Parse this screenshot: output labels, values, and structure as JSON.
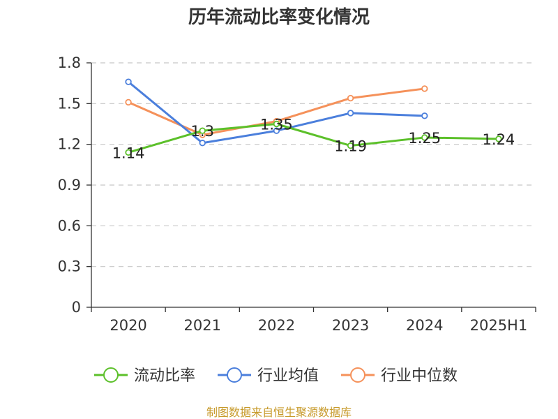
{
  "chart_data": {
    "type": "line",
    "title": "历年流动比率变化情况",
    "categories": [
      "2020",
      "2021",
      "2022",
      "2023",
      "2024",
      "2025H1"
    ],
    "y_ticks": [
      "0",
      "0.3",
      "0.6",
      "0.9",
      "1.2",
      "1.5",
      "1.8"
    ],
    "ylim": [
      0,
      1.8
    ],
    "grid": true,
    "legend_position": "bottom",
    "series": [
      {
        "name": "流动比率",
        "color": "#5cc02a",
        "values": [
          1.14,
          1.3,
          1.35,
          1.19,
          1.25,
          1.24
        ],
        "labels": [
          "1.14",
          "1.3",
          "1.35",
          "1.19",
          "1.25",
          "1.24"
        ]
      },
      {
        "name": "行业均值",
        "color": "#4b7fdc",
        "values": [
          1.66,
          1.21,
          1.3,
          1.43,
          1.41,
          null
        ]
      },
      {
        "name": "行业中位数",
        "color": "#f5915a",
        "values": [
          1.51,
          1.27,
          1.37,
          1.54,
          1.61,
          null
        ]
      }
    ],
    "source": "制图数据来自恒生聚源数据库"
  }
}
